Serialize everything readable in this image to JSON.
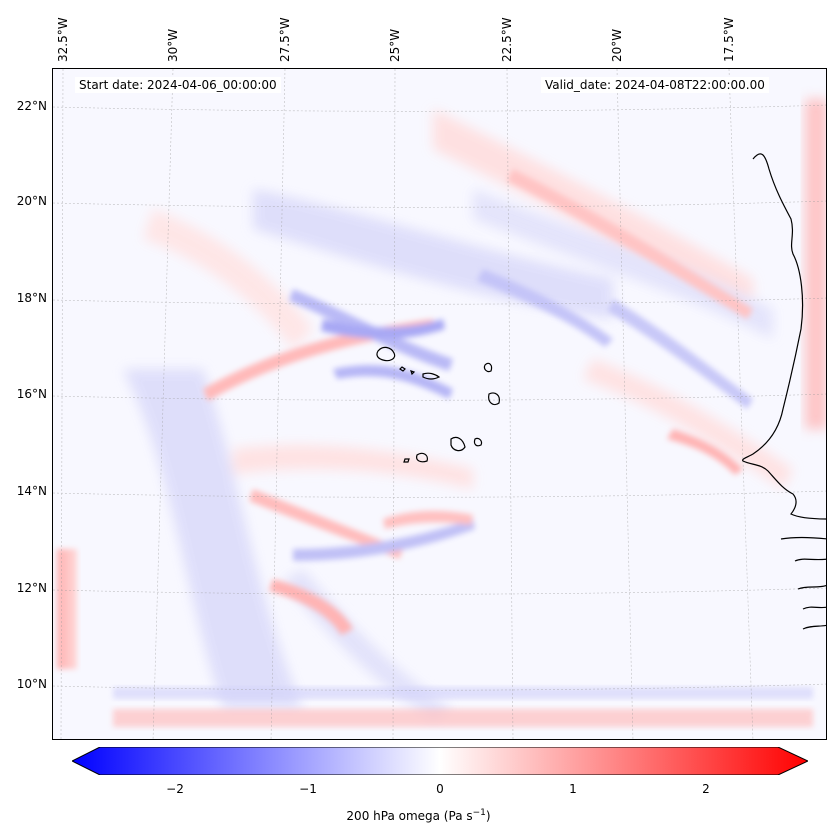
{
  "map": {
    "start_date": "Start date: 2024-04-06_00:00:00",
    "valid_date": "Valid_date: 2024-04-08T22:00:00.00",
    "lon_labels": [
      "32.5°W",
      "30°W",
      "27.5°W",
      "25°W",
      "22.5°W",
      "20°W",
      "17.5°W"
    ],
    "lat_labels": [
      "22°N",
      "20°N",
      "18°N",
      "16°N",
      "14°N",
      "12°N",
      "10°N"
    ],
    "lon_range": [
      -33,
      -16.5
    ],
    "lat_range": [
      9,
      22.5
    ],
    "coastline_color": "#000000",
    "grid": true
  },
  "colorbar": {
    "label_main": "200 hPa omega (Pa s",
    "label_exp": "−1",
    "label_end": ")",
    "ticks": [
      "−2",
      "−1",
      "0",
      "1",
      "2"
    ],
    "range": [
      -2.75,
      2.75
    ],
    "cmap": "bwr",
    "low_color": "#0000ff",
    "mid_color": "#ffffff",
    "high_color": "#ff0000"
  }
}
